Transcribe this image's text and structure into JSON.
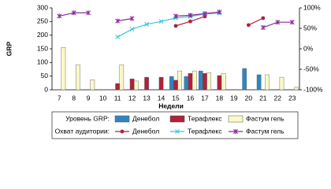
{
  "chart_data": {
    "type": "bar",
    "x_label": "Недели",
    "y_label": "GRP",
    "categories": [
      "7",
      "8",
      "9",
      "10",
      "11",
      "12",
      "13",
      "14",
      "15",
      "16",
      "17",
      "18",
      "19",
      "20",
      "21",
      "22",
      "23"
    ],
    "ylim": [
      0,
      300
    ],
    "yticks": [
      0,
      50,
      100,
      150,
      200,
      250,
      300
    ],
    "y2lim": [
      -100,
      100
    ],
    "y2ticks": [
      {
        "value": -100,
        "label": "-100%"
      },
      {
        "value": -50,
        "label": "-50%"
      },
      {
        "value": 0,
        "label": "0%"
      },
      {
        "value": 50,
        "label": "50%"
      },
      {
        "value": 100,
        "label": "100%"
      }
    ],
    "legend_titles": [
      "Уровень GRP:",
      "Охват аудитории:"
    ],
    "series": [
      {
        "name": "Денебол",
        "type": "bar",
        "color": "#2e86c1",
        "values": [
          null,
          null,
          null,
          null,
          null,
          null,
          null,
          null,
          49,
          49,
          69,
          null,
          null,
          78,
          55,
          null,
          null
        ]
      },
      {
        "name": "Терафлекс",
        "type": "bar",
        "color": "#b0213a",
        "values": [
          null,
          null,
          null,
          null,
          23,
          40,
          46,
          46,
          35,
          60,
          60,
          52,
          null,
          null,
          null,
          null,
          null
        ]
      },
      {
        "name": "Фастум гель",
        "type": "bar",
        "color": "#fbf8c8",
        "values": [
          155,
          92,
          37,
          null,
          92,
          32,
          null,
          null,
          69,
          69,
          63,
          60,
          null,
          null,
          55,
          46,
          9
        ]
      },
      {
        "name": "Денебол",
        "type": "line",
        "axis": "y2",
        "marker": "circle",
        "color": "#b0213a",
        "values": [
          null,
          null,
          null,
          null,
          null,
          null,
          null,
          null,
          56,
          67,
          79,
          null,
          null,
          58,
          75,
          null,
          null
        ]
      },
      {
        "name": "Терафлекс",
        "type": "line",
        "axis": "y2",
        "marker": "x",
        "color": "#3cc4dc",
        "values": [
          null,
          null,
          null,
          null,
          29,
          48,
          60,
          67,
          75,
          79,
          85,
          87,
          null,
          null,
          null,
          null,
          null
        ]
      },
      {
        "name": "Фастум гель",
        "type": "line",
        "axis": "y2",
        "marker": "asterisk",
        "color": "#8b2c9c",
        "values": [
          80,
          88,
          88,
          null,
          68,
          74,
          null,
          null,
          80,
          82,
          86,
          90,
          null,
          null,
          52,
          65,
          65
        ]
      }
    ]
  }
}
